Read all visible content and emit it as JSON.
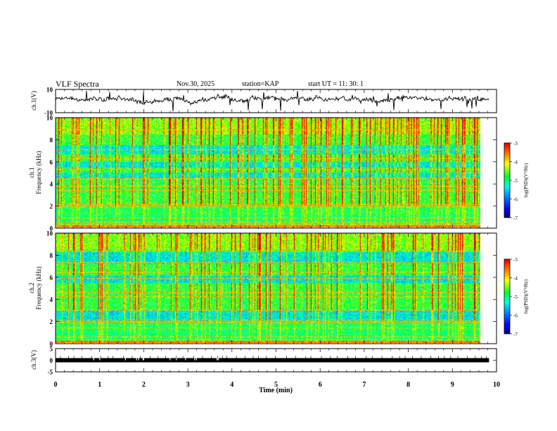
{
  "header": {
    "title": "VLF Spectra",
    "date": "Nov.30, 2025",
    "station_label": "station=",
    "station": "KAP",
    "start_label": "start UT = ",
    "start_time": "11: 30: 1"
  },
  "colors": {
    "trace": "#000000",
    "axis": "#000000",
    "background": "#ffffff"
  },
  "chart_data": [
    {
      "id": "ch1-waveform",
      "type": "line",
      "ylabel": "ch.1(V)",
      "ylim": [
        -10,
        10
      ],
      "yticks": [
        10,
        -10
      ],
      "xlim": [
        0,
        10
      ],
      "x_extent": [
        0,
        9.83
      ],
      "description_series": "broadband VLF voltage waveform",
      "approx_level": [
        2,
        4
      ]
    },
    {
      "id": "ch1-spectrogram",
      "type": "heatmap",
      "ylabel_line1": "ch.1",
      "ylabel_line2": "Frequency (kHz)",
      "ylim": [
        0,
        10
      ],
      "yticks": [
        0,
        2,
        4,
        6,
        8,
        10
      ],
      "xlim": [
        0,
        10
      ],
      "x_extent": [
        0,
        9.83
      ],
      "colorbar": {
        "label": "log(PSD)(V²/Hz)",
        "range": [
          -7,
          -3
        ],
        "ticks": [
          -3,
          -4,
          -5,
          -6,
          -7
        ]
      },
      "bands_khz": [
        0.3,
        0.5,
        0.9,
        1.9,
        2.1,
        3.4,
        3.8,
        4.5,
        5.3,
        6.3,
        7.1,
        8.9
      ],
      "quiet_bands_khz": [
        [
          5.5,
          6.0
        ],
        [
          6.7,
          7.5
        ],
        [
          4.5,
          5.0
        ]
      ]
    },
    {
      "id": "ch2-spectrogram",
      "type": "heatmap",
      "ylabel_line1": "ch.2",
      "ylabel_line2": "Frequency (kHz)",
      "ylim": [
        0,
        10
      ],
      "yticks": [
        0,
        2,
        4,
        6,
        8,
        10
      ],
      "xlim": [
        0,
        10
      ],
      "x_extent": [
        0,
        9.83
      ],
      "colorbar": {
        "label": "log(PSD)(V²/Hz)",
        "range": [
          -7,
          -3
        ],
        "ticks": [
          -3,
          -4,
          -5,
          -6,
          -7
        ]
      },
      "bands_khz": [
        0.3,
        0.6,
        1.4,
        1.9,
        2.1,
        3.0,
        4.2,
        4.6,
        5.9,
        6.5,
        7.4,
        8.4
      ],
      "quiet_bands_khz": [
        [
          5.5,
          6.2
        ],
        [
          2.0,
          3.0
        ],
        [
          7.3,
          8.3
        ]
      ]
    },
    {
      "id": "ch3-waveform",
      "type": "line",
      "ylabel": "ch.3(V)",
      "ylim": [
        -5,
        5
      ],
      "yticks": [
        5,
        0,
        -5
      ],
      "xlim": [
        0,
        10
      ],
      "x_extent": [
        0,
        9.83
      ],
      "level": 0,
      "description_series": "timing pulse channel"
    }
  ],
  "xaxis": {
    "label": "Time (min)",
    "ticks": [
      0,
      1,
      2,
      3,
      4,
      5,
      6,
      7,
      8,
      9,
      10
    ]
  }
}
